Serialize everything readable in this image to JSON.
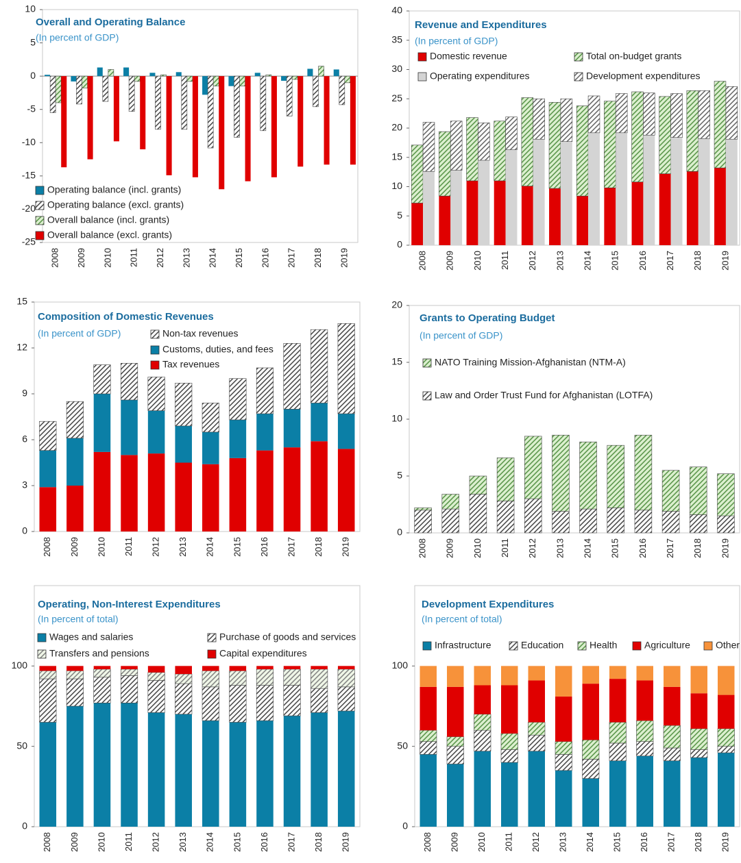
{
  "chart_data": [
    {
      "type": "bar",
      "title": "Overall and Operating Balance",
      "subtitle": "(In percent of GDP)",
      "categories": [
        "2008",
        "2009",
        "2010",
        "2011",
        "2012",
        "2013",
        "2014",
        "2015",
        "2016",
        "2017",
        "2018",
        "2019"
      ],
      "ylim": [
        -25,
        10
      ],
      "yticks": [
        -25,
        -20,
        -15,
        -10,
        -5,
        0,
        5,
        10
      ],
      "grid": false,
      "series": [
        {
          "name": "Operating balance (incl. grants)",
          "color": "#0b7fa6",
          "values": [
            0.2,
            -0.8,
            1.3,
            1.3,
            0.5,
            0.6,
            -2.8,
            -1.5,
            0.5,
            -0.7,
            1.1,
            1.0
          ]
        },
        {
          "name": "Operating balance (excl. grants)",
          "color": "#ffffff",
          "hatch": "#333333",
          "values": [
            -5.5,
            -4.2,
            -3.8,
            -5.3,
            -8.0,
            -8.0,
            -10.8,
            -9.2,
            -8.2,
            -6.0,
            -4.6,
            -4.3
          ]
        },
        {
          "name": "Overall balance (incl. grants)",
          "color": "#dcf0cf",
          "hatch": "#4a8a3a",
          "values": [
            -4.0,
            -1.8,
            1.0,
            -0.8,
            0.2,
            -0.8,
            -1.5,
            -1.5,
            0.2,
            -0.5,
            1.5,
            -1.0
          ]
        },
        {
          "name": "Overall balance (excl. grants)",
          "color": "#e00000",
          "values": [
            -13.7,
            -12.5,
            -9.8,
            -11.0,
            -14.9,
            -15.2,
            -17.0,
            -15.8,
            -15.2,
            -13.6,
            -13.3,
            -13.3
          ]
        }
      ]
    },
    {
      "type": "stacked_bar",
      "title": "Revenue and Expenditures",
      "subtitle": "(In percent of GDP)",
      "categories": [
        "2008",
        "2009",
        "2010",
        "2011",
        "2012",
        "2013",
        "2014",
        "2015",
        "2016",
        "2017",
        "2018",
        "2019"
      ],
      "ylim": [
        0,
        40
      ],
      "yticks": [
        0,
        5,
        10,
        15,
        20,
        25,
        30,
        35,
        40
      ],
      "grid": false,
      "series": [
        {
          "name": "Domestic revenue",
          "color": "#e00000",
          "stack": 0,
          "values": [
            7.2,
            8.4,
            11.0,
            11.0,
            10.1,
            9.7,
            8.4,
            9.8,
            10.8,
            12.2,
            12.6,
            13.2
          ]
        },
        {
          "name": "Total on-budget grants",
          "color": "#dcf0cf",
          "hatch": "#4a8a3a",
          "stack": 0,
          "values": [
            9.9,
            11.0,
            10.8,
            10.2,
            15.1,
            14.7,
            15.4,
            14.8,
            15.4,
            13.2,
            13.8,
            14.8
          ]
        },
        {
          "name": "Operating expenditures",
          "color": "#d4d4d4",
          "stack": 1,
          "values": [
            12.6,
            12.8,
            14.5,
            16.3,
            18.1,
            17.7,
            19.2,
            19.2,
            18.8,
            18.4,
            18.2,
            18.1
          ]
        },
        {
          "name": "Development expenditures",
          "color": "#ffffff",
          "hatch": "#555555",
          "stack": 1,
          "values": [
            8.4,
            8.4,
            6.4,
            5.6,
            6.9,
            7.3,
            6.3,
            6.7,
            7.2,
            7.5,
            8.2,
            9.0
          ]
        }
      ]
    },
    {
      "type": "stacked_bar",
      "title": "Composition of Domestic Revenues",
      "subtitle": "(In percent of GDP)",
      "categories": [
        "2008",
        "2009",
        "2010",
        "2011",
        "2012",
        "2013",
        "2014",
        "2015",
        "2016",
        "2017",
        "2018",
        "2019"
      ],
      "ylim": [
        0,
        15
      ],
      "yticks": [
        0,
        3,
        6,
        9,
        12,
        15
      ],
      "grid": false,
      "series": [
        {
          "name": "Tax revenues",
          "color": "#e00000",
          "values": [
            2.9,
            3.0,
            5.2,
            5.0,
            5.1,
            4.5,
            4.4,
            4.8,
            5.3,
            5.5,
            5.9,
            5.4
          ]
        },
        {
          "name": "Customs, duties, and fees",
          "color": "#0b7fa6",
          "values": [
            2.4,
            3.1,
            3.8,
            3.6,
            2.8,
            2.4,
            2.1,
            2.5,
            2.4,
            2.5,
            2.5,
            2.3
          ]
        },
        {
          "name": "Non-tax revenues",
          "color": "#ffffff",
          "hatch": "#333333",
          "values": [
            1.9,
            2.4,
            1.9,
            2.4,
            2.2,
            2.8,
            1.9,
            2.7,
            3.0,
            4.3,
            4.8,
            5.9
          ]
        }
      ]
    },
    {
      "type": "stacked_bar",
      "title": "Grants to Operating Budget",
      "subtitle": "(In percent of GDP)",
      "categories": [
        "2008",
        "2009",
        "2010",
        "2011",
        "2012",
        "2013",
        "2014",
        "2015",
        "2016",
        "2017",
        "2018",
        "2019"
      ],
      "ylim": [
        0,
        20
      ],
      "yticks": [
        0,
        5,
        10,
        15,
        20
      ],
      "grid": false,
      "series": [
        {
          "name": "Law and Order Trust Fund for Afghanistan (LOTFA)",
          "color": "#ffffff",
          "hatch": "#333333",
          "values": [
            2.0,
            2.1,
            3.4,
            2.8,
            3.0,
            1.9,
            2.1,
            2.2,
            2.0,
            1.9,
            1.6,
            1.5
          ]
        },
        {
          "name": "NATO Training Mission-Afghanistan (NTM-A)",
          "color": "#dcf0cf",
          "hatch": "#4a8a3a",
          "values": [
            0.2,
            1.3,
            1.6,
            3.8,
            5.5,
            6.7,
            5.9,
            5.5,
            6.6,
            3.6,
            4.2,
            3.7
          ]
        }
      ]
    },
    {
      "type": "stacked_bar",
      "title": "Operating, Non-Interest Expenditures",
      "subtitle": "(In percent of total)",
      "categories": [
        "2008",
        "2009",
        "2010",
        "2011",
        "2012",
        "2013",
        "2014",
        "2015",
        "2016",
        "2017",
        "2018",
        "2019"
      ],
      "ylim": [
        0,
        150
      ],
      "yticks": [
        0,
        50,
        100
      ],
      "grid": false,
      "series": [
        {
          "name": "Wages and salaries",
          "color": "#0b7fa6",
          "values": [
            65,
            75,
            77,
            77,
            71,
            70,
            66,
            65,
            66,
            69,
            71,
            72
          ]
        },
        {
          "name": "Purchase of goods and services",
          "color": "#ffffff",
          "hatch": "#333333",
          "values": [
            27,
            17,
            16,
            17,
            20,
            19,
            21,
            23,
            22,
            19,
            15,
            15
          ]
        },
        {
          "name": "Transfers and pensions",
          "color": "#f0f7e8",
          "hatch": "#777777",
          "values": [
            5,
            5,
            5,
            4,
            5,
            6,
            10,
            9,
            10,
            10,
            12,
            11
          ]
        },
        {
          "name": "Capital expenditures",
          "color": "#e00000",
          "values": [
            3,
            3,
            2,
            2,
            4,
            5,
            3,
            3,
            2,
            2,
            2,
            2
          ]
        }
      ]
    },
    {
      "type": "stacked_bar",
      "title": "Development Expenditures",
      "subtitle": "(In percent of total)",
      "categories": [
        "2008",
        "2009",
        "2010",
        "2011",
        "2012",
        "2013",
        "2014",
        "2015",
        "2016",
        "2017",
        "2018",
        "2019"
      ],
      "ylim": [
        0,
        150
      ],
      "yticks": [
        0,
        50,
        100
      ],
      "grid": false,
      "series": [
        {
          "name": "Infrastructure",
          "color": "#0b7fa6",
          "values": [
            45,
            39,
            47,
            40,
            47,
            35,
            30,
            41,
            44,
            41,
            43,
            46
          ]
        },
        {
          "name": "Education",
          "color": "#ffffff",
          "hatch": "#333333",
          "values": [
            8,
            11,
            13,
            8,
            10,
            10,
            12,
            11,
            9,
            8,
            5,
            4
          ]
        },
        {
          "name": "Health",
          "color": "#dcf0cf",
          "hatch": "#4a8a3a",
          "values": [
            7,
            6,
            10,
            10,
            8,
            8,
            12,
            13,
            13,
            14,
            13,
            11
          ]
        },
        {
          "name": "Agriculture",
          "color": "#e00000",
          "values": [
            27,
            31,
            18,
            30,
            26,
            28,
            35,
            27,
            25,
            24,
            22,
            21
          ]
        },
        {
          "name": "Other",
          "color": "#f7923a",
          "values": [
            13,
            13,
            12,
            12,
            9,
            19,
            11,
            8,
            9,
            13,
            17,
            18
          ]
        }
      ]
    }
  ]
}
